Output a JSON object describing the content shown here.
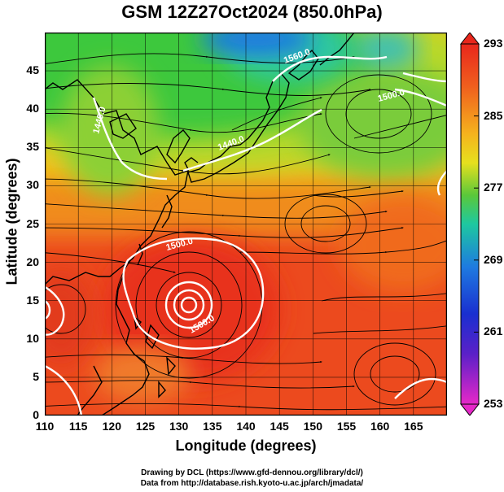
{
  "title": "GSM 12Z27Oct2024 (850.0hPa)",
  "xlabel": "Longitude (degrees)",
  "ylabel": "Latitude  (degrees)",
  "credit_line1": "Drawing by DCL (https://www.gfd-dennou.org/library/dcl/)",
  "credit_line2": "Data from http://database.rish.kyoto-u.ac.jp/arch/jmadata/",
  "x_ticks": [
    "110",
    "115",
    "120",
    "125",
    "130",
    "135",
    "140",
    "145",
    "150",
    "155",
    "160",
    "165"
  ],
  "y_ticks": [
    "0",
    "5",
    "10",
    "15",
    "20",
    "25",
    "30",
    "35",
    "40",
    "45"
  ],
  "colorbar_ticks": [
    "293",
    "285",
    "277",
    "269",
    "261",
    "253"
  ],
  "contour_labels": [
    "1440.0",
    "1440.0",
    "1500.0",
    "1500.0",
    "1500.0",
    "1560.0"
  ],
  "map_data": {
    "type": "temperature-streamline-map",
    "lon_range": [
      110,
      170
    ],
    "lat_range": [
      0,
      50
    ],
    "colorbar_range": [
      253,
      293
    ],
    "contour_interval": 60
  },
  "colors": {
    "warm": "#e8391e",
    "cold": "#1e6cd8",
    "mid": "#44c84a",
    "contour": "#ffffff",
    "coast": "#000000"
  }
}
